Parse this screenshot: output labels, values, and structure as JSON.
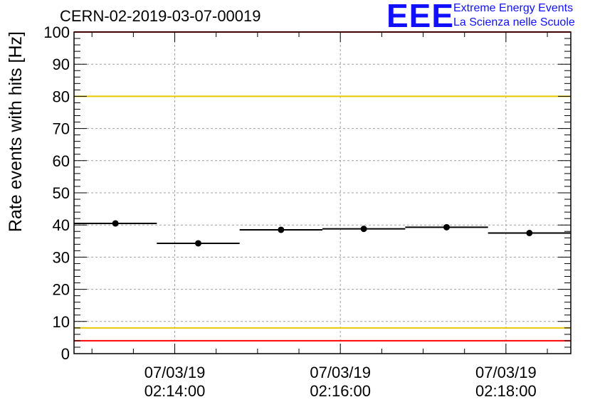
{
  "page": {
    "title": "CERN-02-2019-03-07-00019",
    "logo": {
      "mark": "EEE",
      "line1": "Extreme Energy Events",
      "line2": "La Scienza nelle Scuole",
      "color": "#1010ff"
    }
  },
  "chart_data": {
    "type": "scatter",
    "title": "CERN-02-2019-03-07-00019",
    "xlabel": "",
    "ylabel": "Rate events with hits [Hz]",
    "xlim": [
      "07/03/19 02:12:47",
      "07/03/19 02:18:47"
    ],
    "ylim": [
      0,
      100
    ],
    "grid": true,
    "yticks": [
      0,
      10,
      20,
      30,
      40,
      50,
      60,
      70,
      80,
      90,
      100
    ],
    "xticks": [
      {
        "time": "02:14:00",
        "date": "07/03/19",
        "label_date": "07/03/19",
        "label_time": "02:14:00"
      },
      {
        "time": "02:16:00",
        "date": "07/03/19",
        "label_date": "07/03/19",
        "label_time": "02:16:00"
      },
      {
        "time": "02:18:00",
        "date": "07/03/19",
        "label_date": "07/03/19",
        "label_time": "02:18:00"
      }
    ],
    "series": [
      {
        "marker_color": "#000000",
        "points": [
          {
            "x_start": "02:12:47",
            "x_end": "02:13:47",
            "x": "02:13:17",
            "y": 40.5
          },
          {
            "x_start": "02:13:47",
            "x_end": "02:14:47",
            "x": "02:14:17",
            "y": 34.3
          },
          {
            "x_start": "02:14:47",
            "x_end": "02:15:47",
            "x": "02:15:17",
            "y": 38.5
          },
          {
            "x_start": "02:15:47",
            "x_end": "02:16:47",
            "x": "02:16:17",
            "y": 38.8
          },
          {
            "x_start": "02:16:47",
            "x_end": "02:17:47",
            "x": "02:17:17",
            "y": 39.3
          },
          {
            "x_start": "02:17:47",
            "x_end": "02:18:47",
            "x": "02:18:17",
            "y": 37.5
          }
        ]
      }
    ],
    "reference_lines": [
      {
        "y": 100,
        "color": "#ff0000"
      },
      {
        "y": 80,
        "color": "#e8c800"
      },
      {
        "y": 8,
        "color": "#e8c800"
      },
      {
        "y": 4,
        "color": "#ff0000"
      }
    ]
  }
}
